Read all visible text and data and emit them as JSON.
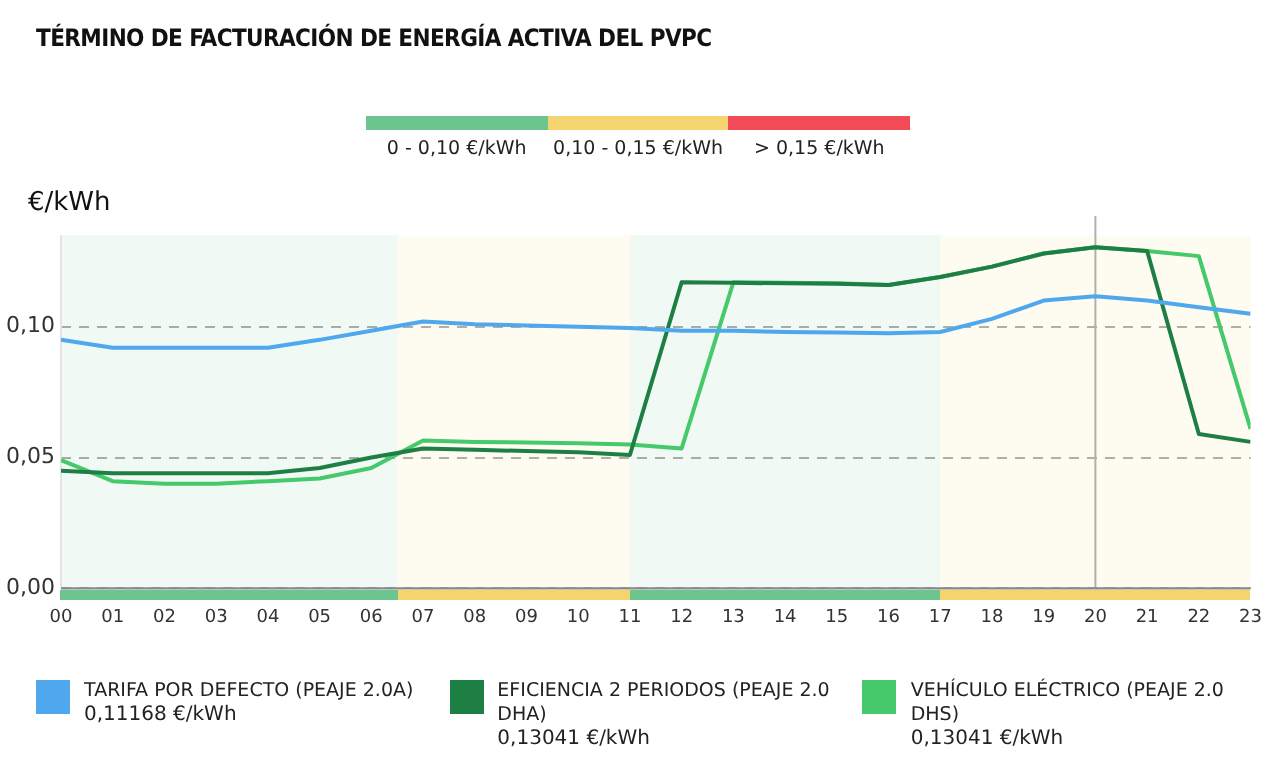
{
  "chart_data": {
    "type": "line",
    "title": "TÉRMINO DE FACTURACIÓN DE ENERGÍA ACTIVA DEL PVPC",
    "ylabel": "€/kWh",
    "x": [
      0,
      1,
      2,
      3,
      4,
      5,
      6,
      7,
      8,
      9,
      10,
      11,
      12,
      13,
      14,
      15,
      16,
      17,
      18,
      19,
      20,
      21,
      22,
      23
    ],
    "xlim": [
      0,
      23
    ],
    "xticks": [
      {
        "value": 0,
        "label": "00"
      },
      {
        "value": 1,
        "label": "01"
      },
      {
        "value": 2,
        "label": "02"
      },
      {
        "value": 3,
        "label": "03"
      },
      {
        "value": 4,
        "label": "04"
      },
      {
        "value": 5,
        "label": "05"
      },
      {
        "value": 6,
        "label": "06"
      },
      {
        "value": 7,
        "label": "07"
      },
      {
        "value": 8,
        "label": "08"
      },
      {
        "value": 9,
        "label": "09"
      },
      {
        "value": 10,
        "label": "10"
      },
      {
        "value": 11,
        "label": "11"
      },
      {
        "value": 12,
        "label": "12"
      },
      {
        "value": 13,
        "label": "13"
      },
      {
        "value": 14,
        "label": "14"
      },
      {
        "value": 15,
        "label": "15"
      },
      {
        "value": 16,
        "label": "16"
      },
      {
        "value": 17,
        "label": "17"
      },
      {
        "value": 18,
        "label": "18"
      },
      {
        "value": 19,
        "label": "19"
      },
      {
        "value": 20,
        "label": "20"
      },
      {
        "value": 21,
        "label": "21"
      },
      {
        "value": 22,
        "label": "22"
      },
      {
        "value": 23,
        "label": "23"
      }
    ],
    "ylim": [
      0,
      0.135
    ],
    "yticks": [
      {
        "value": 0,
        "label": "0,00"
      },
      {
        "value": 0.05,
        "label": "0,05"
      },
      {
        "value": 0.1,
        "label": "0,10"
      }
    ],
    "grid": "y",
    "legend": "bottom",
    "marker": "none",
    "series": [
      {
        "name": "TARIFA POR DEFECTO (PEAJE 2.0A)",
        "color": "#4fa8ee",
        "values": [
          0.095,
          0.092,
          0.092,
          0.092,
          0.092,
          0.095,
          0.0985,
          0.102,
          0.101,
          0.1005,
          0.1,
          0.0995,
          0.0985,
          0.0985,
          0.098,
          0.0978,
          0.0975,
          0.098,
          0.103,
          0.11,
          0.11168,
          0.11,
          0.1075,
          0.105
        ]
      },
      {
        "name": "EFICIENCIA 2 PERIODOS (PEAJE 2.0 DHA)",
        "color": "#1e7f45",
        "values": [
          0.045,
          0.044,
          0.044,
          0.044,
          0.044,
          0.046,
          0.05,
          0.0535,
          0.053,
          0.0525,
          0.052,
          0.051,
          0.117,
          0.1168,
          0.1166,
          0.1164,
          0.116,
          0.119,
          0.123,
          0.128,
          0.13041,
          0.129,
          0.059,
          0.056
        ]
      },
      {
        "name": "VEHÍCULO ELÉCTRICO (PEAJE 2.0 DHS)",
        "color": "#45c96a",
        "values": [
          0.049,
          0.041,
          0.04,
          0.04,
          0.041,
          0.042,
          0.046,
          0.0565,
          0.056,
          0.0558,
          0.0555,
          0.055,
          0.0535,
          0.117,
          0.1168,
          0.1166,
          0.116,
          0.119,
          0.123,
          0.128,
          0.13041,
          0.129,
          0.127,
          0.061
        ]
      }
    ],
    "annotations": [
      "0,11168 €/kWh",
      "0,13041 €/kWh",
      "0,13041 €/kWh",
      "0 - 0,10 €/kWh",
      "0,10 - 0,15 €/kWh",
      "> 0,15 €/kWh"
    ],
    "ref_lines": [
      {
        "axis": "x",
        "value": 20,
        "color": "#b0b0b0"
      }
    ],
    "bands": [
      {
        "axis": "x",
        "from": 0,
        "to": 6.5,
        "color": "#6cc58f"
      },
      {
        "axis": "x",
        "from": 6.5,
        "to": 11,
        "color": "#f5d470"
      },
      {
        "axis": "x",
        "from": 11,
        "to": 17,
        "color": "#6cc58f"
      },
      {
        "axis": "x",
        "from": 17,
        "to": 23,
        "color": "#f5d470"
      }
    ]
  }
}
